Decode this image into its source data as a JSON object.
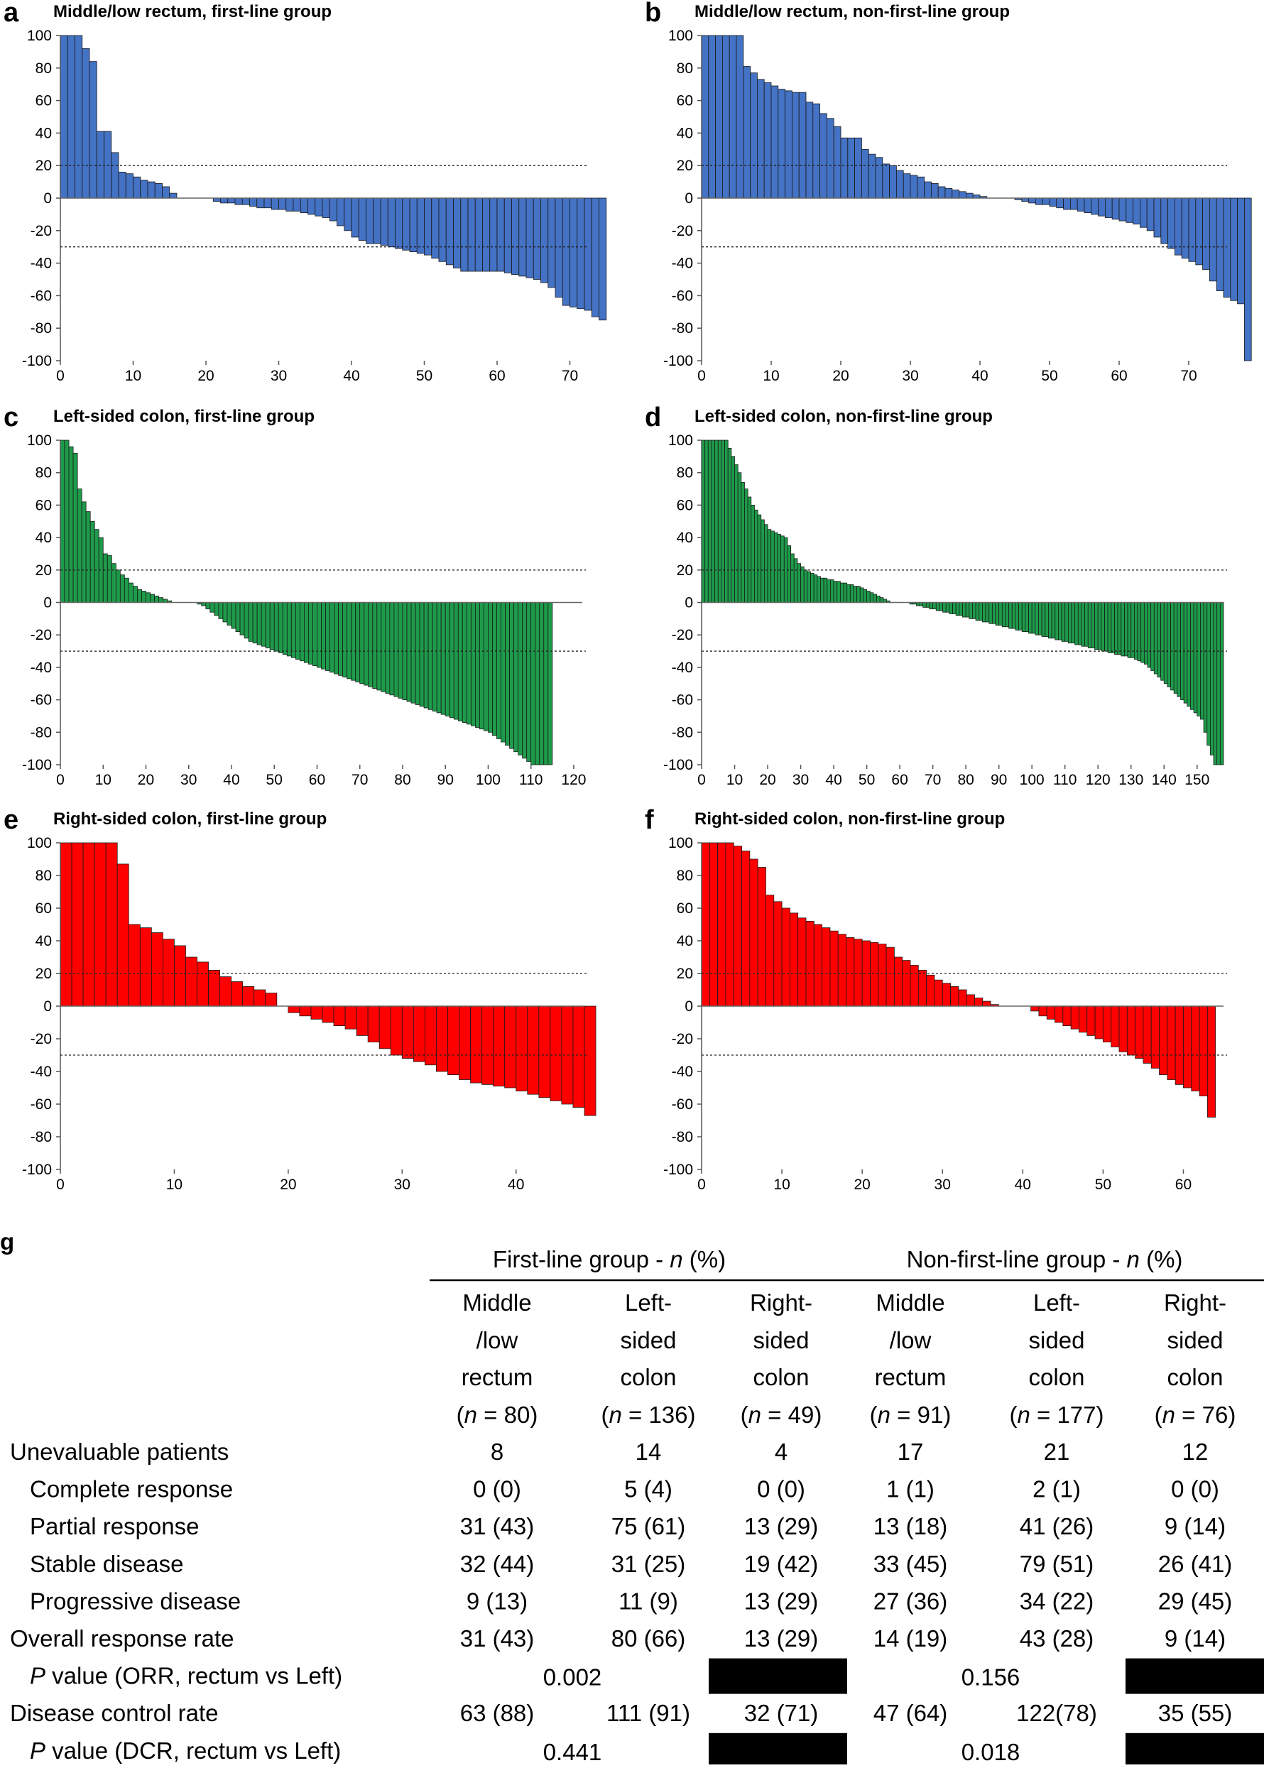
{
  "chart_data": [
    {
      "type": "bar",
      "panel": "a",
      "title": "Middle/low rectum, first-line group",
      "color": "#4472C4",
      "ylim": [
        -100,
        100
      ],
      "yticks": [
        "100",
        "80",
        "60",
        "40",
        "20",
        "0",
        "-20",
        "-40",
        "-60",
        "-80",
        "-100"
      ],
      "xlim": [
        0,
        72
      ],
      "xticks": [
        "0",
        "10",
        "20",
        "30",
        "40",
        "50",
        "60",
        "70"
      ],
      "reference_lines": [
        20,
        -30
      ],
      "values": [
        100,
        100,
        100,
        92,
        84,
        41,
        41,
        28,
        16,
        15,
        13,
        11,
        10,
        9,
        7,
        3,
        0,
        0,
        0,
        0,
        0,
        -2,
        -3,
        -3,
        -4,
        -4,
        -5,
        -6,
        -6,
        -7,
        -7,
        -8,
        -8,
        -9,
        -10,
        -11,
        -12,
        -14,
        -17,
        -20,
        -24,
        -26,
        -28,
        -28,
        -29,
        -30,
        -31,
        -32,
        -33,
        -34,
        -35,
        -37,
        -39,
        -41,
        -43,
        -45,
        -45,
        -45,
        -45,
        -45,
        -45,
        -46,
        -47,
        -48,
        -49,
        -50,
        -52,
        -55,
        -61,
        -66,
        -67,
        -68,
        -69,
        -73,
        -75
      ]
    },
    {
      "type": "bar",
      "panel": "b",
      "title": "Middle/low rectum, non-first-line group",
      "color": "#4472C4",
      "ylim": [
        -100,
        100
      ],
      "yticks": [
        "100",
        "80",
        "60",
        "40",
        "20",
        "0",
        "-20",
        "-40",
        "-60",
        "-80",
        "-100"
      ],
      "xlim": [
        0,
        75
      ],
      "xticks": [
        "0",
        "10",
        "20",
        "30",
        "40",
        "50",
        "60",
        "70"
      ],
      "reference_lines": [
        20,
        -30
      ],
      "values": [
        100,
        100,
        100,
        100,
        100,
        100,
        81,
        77,
        73,
        71,
        69,
        67,
        66,
        65,
        65,
        59,
        58,
        52,
        49,
        44,
        37,
        37,
        37,
        30,
        27,
        25,
        21,
        20,
        17,
        15,
        14,
        13,
        10,
        9,
        7,
        6,
        5,
        4,
        3,
        2,
        1,
        0,
        0,
        0,
        0,
        -1,
        -2,
        -3,
        -4,
        -4,
        -5,
        -6,
        -7,
        -7,
        -8,
        -9,
        -10,
        -11,
        -12,
        -13,
        -14,
        -15,
        -16,
        -18,
        -20,
        -24,
        -28,
        -31,
        -35,
        -37,
        -39,
        -41,
        -44,
        -51,
        -57,
        -61,
        -63,
        -65,
        -100
      ]
    },
    {
      "type": "bar",
      "panel": "c",
      "title": "Left-sided colon, first-line group",
      "color": "#1E9B4A",
      "ylim": [
        -100,
        100
      ],
      "yticks": [
        "100",
        "80",
        "60",
        "40",
        "20",
        "0",
        "-20",
        "-40",
        "-60",
        "-80",
        "-100"
      ],
      "xlim": [
        0,
        122
      ],
      "xticks": [
        "0",
        "10",
        "20",
        "30",
        "40",
        "50",
        "60",
        "70",
        "80",
        "90",
        "100",
        "110",
        "120"
      ],
      "reference_lines": [
        20,
        -30
      ],
      "values": [
        100,
        100,
        96,
        92,
        70,
        62,
        56,
        50,
        45,
        40,
        30,
        29,
        24,
        20,
        17,
        15,
        12,
        10,
        8,
        7,
        6,
        5,
        4,
        3,
        2,
        1,
        0,
        0,
        0,
        0,
        0,
        0,
        -1,
        -2,
        -4,
        -6,
        -8,
        -10,
        -12,
        -14,
        -16,
        -18,
        -20,
        -22,
        -24,
        -25,
        -26,
        -27,
        -28,
        -29,
        -30,
        -31,
        -32,
        -33,
        -34,
        -35,
        -36,
        -37,
        -38,
        -39,
        -40,
        -41,
        -42,
        -43,
        -44,
        -45,
        -46,
        -47,
        -48,
        -49,
        -50,
        -51,
        -52,
        -53,
        -54,
        -55,
        -56,
        -57,
        -58,
        -59,
        -60,
        -61,
        -62,
        -63,
        -64,
        -65,
        -66,
        -67,
        -68,
        -69,
        -70,
        -71,
        -72,
        -73,
        -74,
        -75,
        -76,
        -77,
        -78,
        -79,
        -80,
        -82,
        -84,
        -86,
        -88,
        -90,
        -92,
        -94,
        -96,
        -98,
        -100,
        -100,
        -100,
        -100,
        -100
      ]
    },
    {
      "type": "bar",
      "panel": "d",
      "title": "Left-sided colon, non-first-line group",
      "color": "#1E9B4A",
      "ylim": [
        -100,
        100
      ],
      "yticks": [
        "100",
        "80",
        "60",
        "40",
        "20",
        "0",
        "-20",
        "-40",
        "-60",
        "-80",
        "-100"
      ],
      "xlim": [
        0,
        158
      ],
      "xticks": [
        "0",
        "10",
        "20",
        "30",
        "40",
        "50",
        "60",
        "70",
        "80",
        "90",
        "100",
        "110",
        "120",
        "130",
        "140",
        "150"
      ],
      "reference_lines": [
        20,
        -30
      ],
      "values": [
        100,
        100,
        100,
        100,
        100,
        100,
        100,
        100,
        95,
        90,
        85,
        80,
        74,
        70,
        65,
        60,
        57,
        54,
        51,
        48,
        45,
        44,
        43,
        42,
        41,
        40,
        35,
        30,
        27,
        24,
        22,
        20,
        19,
        18,
        17,
        16,
        15,
        15,
        14,
        14,
        13,
        13,
        12,
        12,
        11,
        11,
        10,
        10,
        9,
        8,
        7,
        6,
        5,
        4,
        3,
        2,
        1,
        0,
        0,
        0,
        0,
        0,
        0,
        -1,
        -1,
        -2,
        -2,
        -3,
        -3,
        -4,
        -4,
        -5,
        -5,
        -6,
        -6,
        -7,
        -7,
        -8,
        -8,
        -9,
        -9,
        -10,
        -10,
        -11,
        -11,
        -12,
        -12,
        -13,
        -13,
        -14,
        -14,
        -15,
        -15,
        -16,
        -16,
        -17,
        -17,
        -18,
        -18,
        -19,
        -19,
        -20,
        -20,
        -21,
        -21,
        -22,
        -22,
        -23,
        -23,
        -24,
        -24,
        -25,
        -25,
        -26,
        -26,
        -27,
        -27,
        -28,
        -28,
        -29,
        -29,
        -30,
        -30,
        -31,
        -31,
        -32,
        -32,
        -33,
        -33,
        -34,
        -34,
        -35,
        -36,
        -37,
        -38,
        -40,
        -42,
        -44,
        -46,
        -48,
        -50,
        -52,
        -54,
        -56,
        -58,
        -60,
        -62,
        -64,
        -66,
        -68,
        -70,
        -72,
        -80,
        -88,
        -94,
        -100,
        -100,
        -100
      ]
    },
    {
      "type": "bar",
      "panel": "e",
      "title": "Right-sided colon, first-line group",
      "color": "#FF0000",
      "ylim": [
        -100,
        100
      ],
      "yticks": [
        "100",
        "80",
        "60",
        "40",
        "20",
        "0",
        "-20",
        "-40",
        "-60",
        "-80",
        "-100"
      ],
      "xlim": [
        0,
        46
      ],
      "xticks": [
        "0",
        "10",
        "20",
        "30",
        "40"
      ],
      "reference_lines": [
        20,
        -30
      ],
      "values": [
        100,
        100,
        100,
        100,
        100,
        87,
        50,
        48,
        45,
        41,
        37,
        30,
        27,
        22,
        18,
        15,
        12,
        10,
        8,
        0,
        -4,
        -6,
        -8,
        -10,
        -12,
        -14,
        -18,
        -22,
        -26,
        -30,
        -32,
        -34,
        -36,
        -40,
        -42,
        -45,
        -47,
        -48,
        -49,
        -50,
        -52,
        -54,
        -56,
        -58,
        -60,
        -62,
        -67
      ]
    },
    {
      "type": "bar",
      "panel": "f",
      "title": "Right-sided colon, non-first-line group",
      "color": "#FF0000",
      "ylim": [
        -100,
        100
      ],
      "yticks": [
        "100",
        "80",
        "60",
        "40",
        "20",
        "0",
        "-20",
        "-40",
        "-60",
        "-80",
        "-100"
      ],
      "xlim": [
        0,
        65
      ],
      "xticks": [
        "0",
        "10",
        "20",
        "30",
        "40",
        "50",
        "60"
      ],
      "reference_lines": [
        20,
        -30
      ],
      "values": [
        100,
        100,
        100,
        100,
        98,
        95,
        90,
        85,
        68,
        64,
        60,
        57,
        54,
        52,
        50,
        48,
        46,
        44,
        42,
        41,
        40,
        39,
        38,
        36,
        30,
        28,
        25,
        22,
        19,
        16,
        14,
        12,
        10,
        7,
        5,
        3,
        1,
        0,
        0,
        0,
        0,
        -3,
        -6,
        -8,
        -10,
        -12,
        -14,
        -16,
        -18,
        -20,
        -22,
        -25,
        -28,
        -30,
        -32,
        -35,
        -38,
        -42,
        -45,
        -48,
        -50,
        -52,
        -55,
        -68
      ]
    }
  ],
  "table": {
    "panel": "g",
    "group_headers": [
      {
        "label": "First-line group - ",
        "n": "n",
        "suffix": " (%)"
      },
      {
        "label": "Non-first-line group - ",
        "n": "n",
        "suffix": " (%)"
      }
    ],
    "columns": [
      {
        "line1": "Middle",
        "line2": "/low",
        "line3": "rectum",
        "n": "(n = 80)"
      },
      {
        "line1": "Left-",
        "line2": "sided",
        "line3": "colon",
        "n": "(n = 136)"
      },
      {
        "line1": "Right-",
        "line2": "sided",
        "line3": "colon",
        "n": "(n = 49)"
      },
      {
        "line1": "Middle",
        "line2": "/low",
        "line3": "rectum",
        "n": "(n = 91)"
      },
      {
        "line1": "Left-",
        "line2": "sided",
        "line3": "colon",
        "n": "(n = 177)"
      },
      {
        "line1": "Right-",
        "line2": "sided",
        "line3": "colon",
        "n": "(n = 76)"
      }
    ],
    "rows": [
      {
        "label": "Unevaluable patients",
        "indent": false,
        "cells": [
          "8",
          "14",
          "4",
          "17",
          "21",
          "12"
        ]
      },
      {
        "label": "Complete response",
        "indent": true,
        "cells": [
          "0 (0)",
          "5 (4)",
          "0 (0)",
          "1 (1)",
          "2 (1)",
          "0 (0)"
        ]
      },
      {
        "label": "Partial response",
        "indent": true,
        "cells": [
          "31 (43)",
          "75 (61)",
          "13 (29)",
          "13 (18)",
          "41 (26)",
          "9 (14)"
        ]
      },
      {
        "label": "Stable disease",
        "indent": true,
        "cells": [
          "32 (44)",
          "31 (25)",
          "19 (42)",
          "33 (45)",
          "79 (51)",
          "26 (41)"
        ]
      },
      {
        "label": "Progressive disease",
        "indent": true,
        "cells": [
          "9 (13)",
          "11 (9)",
          "13 (29)",
          "27 (36)",
          "34 (22)",
          "29 (45)"
        ]
      },
      {
        "label": "Overall response rate",
        "indent": false,
        "cells": [
          "31 (43)",
          "80 (66)",
          "13 (29)",
          "14 (19)",
          "43 (28)",
          "9 (14)"
        ]
      },
      {
        "label_italic": "P",
        "label": " value (ORR, rectum vs Left)",
        "indent": true,
        "pvalues": [
          "0.002",
          "0.156"
        ]
      },
      {
        "label": "Disease control rate",
        "indent": false,
        "cells": [
          "63 (88)",
          "111 (91)",
          "32 (71)",
          "47 (64)",
          "122(78)",
          "35 (55)"
        ]
      },
      {
        "label_italic": "P",
        "label": " value (DCR, rectum vs Left)",
        "indent": true,
        "pvalues": [
          "0.441",
          "0.018"
        ]
      }
    ]
  }
}
